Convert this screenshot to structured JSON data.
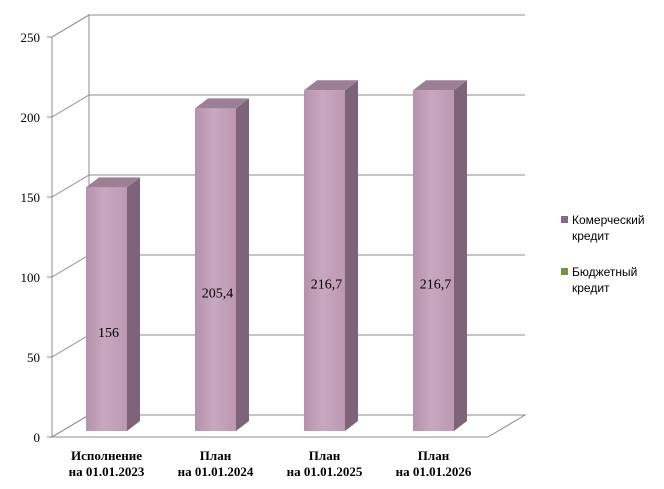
{
  "chart_data": {
    "type": "bar",
    "categories": [
      [
        "Исполнение",
        "на 01.01.2023"
      ],
      [
        "План",
        "на 01.01.2024"
      ],
      [
        "План",
        "на 01.01.2025"
      ],
      [
        "План",
        "на 01.01.2026"
      ]
    ],
    "series": [
      {
        "name": "Комерческий кредит",
        "values": [
          156,
          205.4,
          216.7,
          216.7
        ],
        "labels": [
          "156",
          "205,4",
          "216,7",
          "216,7"
        ],
        "color": "#c4a2ba"
      },
      {
        "name": "Бюджетный кредит",
        "values": [
          0,
          0,
          0,
          0
        ],
        "color": "#77933c"
      }
    ],
    "y_ticks": [
      "0",
      "50",
      "100",
      "150",
      "200",
      "250"
    ],
    "ylim": [
      0,
      250
    ],
    "grid": true,
    "legend_position": "right",
    "style": "3d-cylinder"
  },
  "legend": {
    "item1_line1": "Комерческий",
    "item1_line2": "кредит",
    "item2_line1": "Бюджетный",
    "item2_line2": "кредит"
  }
}
